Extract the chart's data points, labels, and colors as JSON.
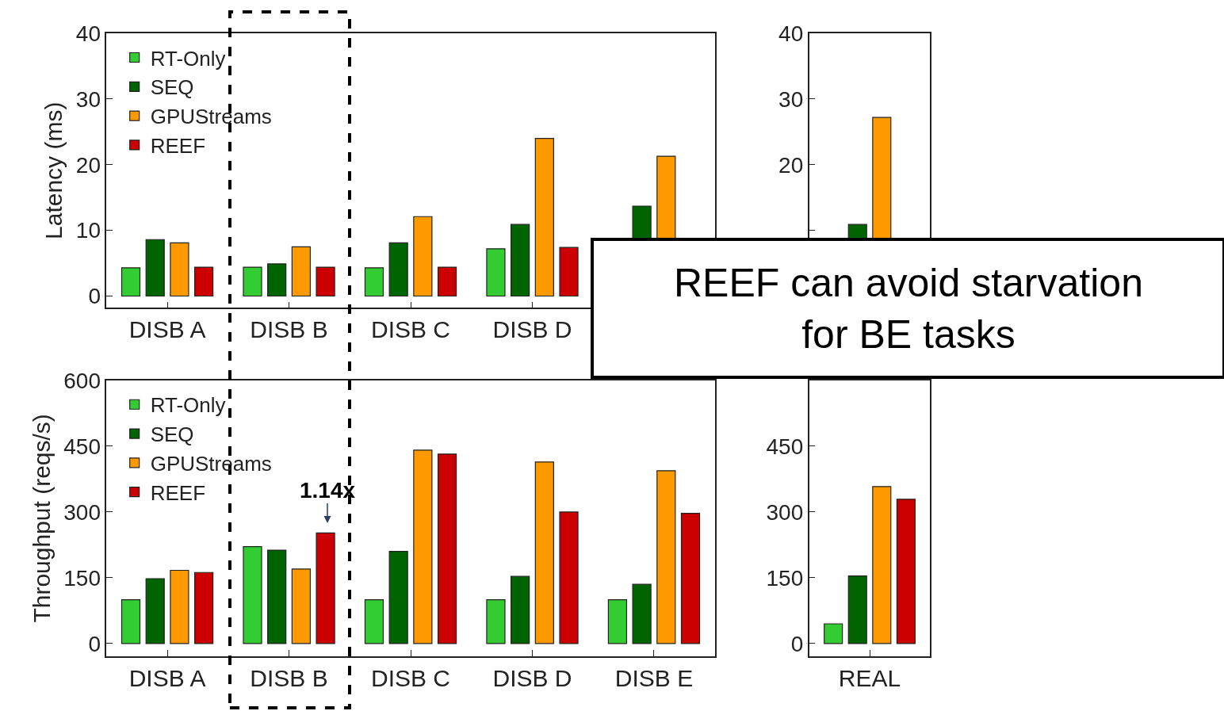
{
  "chart_data": [
    {
      "type": "bar",
      "ylabel": "Latency (ms)",
      "categories": [
        "DISB A",
        "DISB B",
        "DISB C",
        "DISB D",
        null
      ],
      "ylim": [
        -1.8,
        40
      ],
      "yticks": [
        0,
        10,
        20,
        30,
        40
      ],
      "legend": "top left",
      "series": [
        {
          "name": "RT-Only",
          "color": "#33cc33",
          "values": [
            4.3,
            4.4,
            4.3,
            7.2,
            null
          ]
        },
        {
          "name": "SEQ",
          "color": "#006400",
          "values": [
            8.6,
            4.9,
            8.1,
            10.9,
            13.7
          ]
        },
        {
          "name": "GPUStreams",
          "color": "#ff9900",
          "values": [
            8.1,
            7.5,
            12.1,
            24.0,
            21.3
          ]
        },
        {
          "name": "REEF",
          "color": "#cc0000",
          "values": [
            4.4,
            4.4,
            4.4,
            7.4,
            null
          ]
        }
      ],
      "annotations": [
        "REEF can avoid starvation\nfor BE tasks"
      ]
    },
    {
      "type": "bar",
      "categories": [
        null
      ],
      "ylim": [
        -1.8,
        40
      ],
      "yticks": [
        {
          "value": 10,
          "label": null
        },
        20,
        30,
        40
      ],
      "series": [
        {
          "color": "#33cc33",
          "values": [
            null
          ]
        },
        {
          "color": "#006400",
          "values": [
            10.9
          ]
        },
        {
          "color": "#ff9900",
          "values": [
            27.2
          ]
        },
        {
          "color": "#cc0000",
          "values": [
            null
          ]
        }
      ]
    },
    {
      "type": "bar",
      "ylabel": "Throughput (reqs/s)",
      "categories": [
        "DISB A",
        "DISB B",
        "DISB C",
        "DISB D",
        "DISB E"
      ],
      "ylim": [
        -29,
        600
      ],
      "yticks": [
        0,
        150,
        300,
        450,
        600
      ],
      "legend": "top left",
      "series": [
        {
          "name": "RT-Only",
          "color": "#33cc33",
          "values": [
            100,
            221,
            100,
            100,
            100
          ]
        },
        {
          "name": "SEQ",
          "color": "#006400",
          "values": [
            148,
            213,
            210,
            153,
            135
          ]
        },
        {
          "name": "GPUStreams",
          "color": "#ff9900",
          "values": [
            167,
            170,
            441,
            414,
            394
          ]
        },
        {
          "name": "REEF",
          "color": "#cc0000",
          "values": [
            162,
            252,
            432,
            300,
            297
          ]
        }
      ],
      "annotations": [
        "1.14x"
      ]
    },
    {
      "type": "bar",
      "categories": [
        "REAL"
      ],
      "ylim": [
        -29,
        600
      ],
      "yticks": [
        0,
        150,
        300,
        450
      ],
      "series": [
        {
          "color": "#33cc33",
          "values": [
            45
          ]
        },
        {
          "color": "#006400",
          "values": [
            154
          ]
        },
        {
          "color": "#ff9900",
          "values": [
            358
          ]
        },
        {
          "color": "#cc0000",
          "values": [
            329
          ]
        }
      ]
    }
  ]
}
